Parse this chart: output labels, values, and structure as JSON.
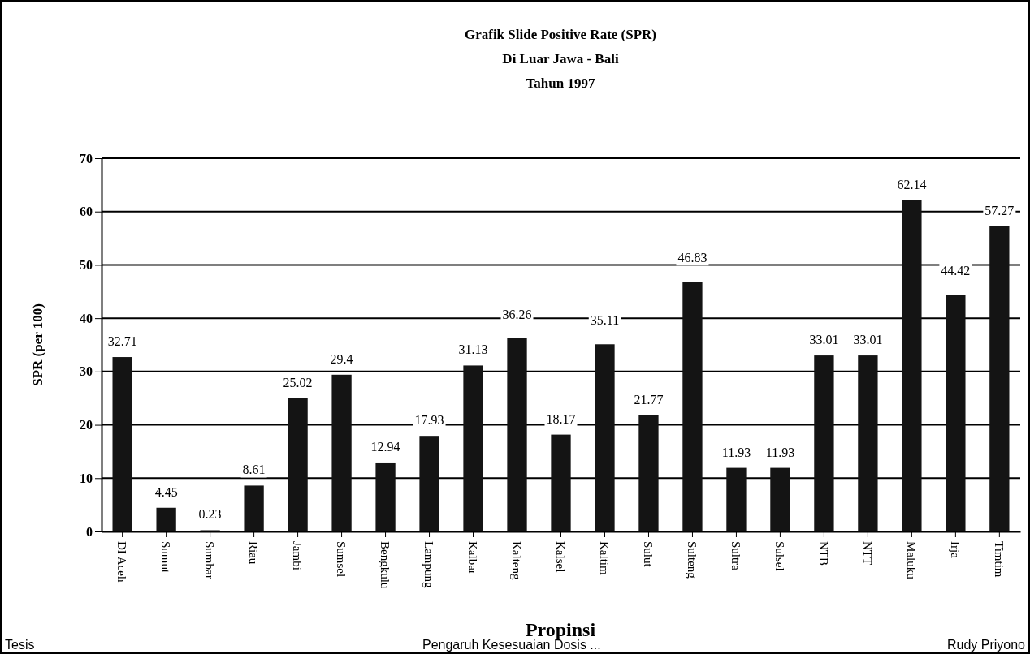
{
  "chart_data": {
    "type": "bar",
    "title": "Grafik Slide Positive Rate (SPR)",
    "subtitle": "Di Luar Jawa - Bali\nTahun 1997",
    "xlabel": "Propinsi",
    "ylabel": "SPR (per 100)",
    "categories": [
      "DI Aceh",
      "Sumut",
      "Sumbar",
      "Riau",
      "Jambi",
      "Sumsel",
      "Bengkulu",
      "Lampung",
      "Kalbar",
      "Kalteng",
      "Kalsel",
      "Kaltim",
      "Sulut",
      "Sulteng",
      "Sultra",
      "Sulsel",
      "NTB",
      "NTT",
      "Maluku",
      "Irja",
      "Timtim"
    ],
    "values": [
      32.71,
      4.45,
      0.23,
      8.61,
      25.02,
      29.4,
      12.94,
      17.93,
      31.13,
      36.26,
      18.17,
      35.11,
      21.77,
      46.83,
      11.93,
      11.93,
      33.01,
      33.01,
      62.14,
      44.42,
      57.27
    ],
    "color": "#141414",
    "ylim": [
      0,
      70
    ],
    "yticks": [
      0,
      10,
      20,
      30,
      40,
      50,
      60,
      70
    ],
    "grid": "y",
    "data_labels": true,
    "annotations": [
      "Tesis",
      "Pengaruh Kesesuaian Dosis ...",
      "Rudy Priyono"
    ]
  }
}
